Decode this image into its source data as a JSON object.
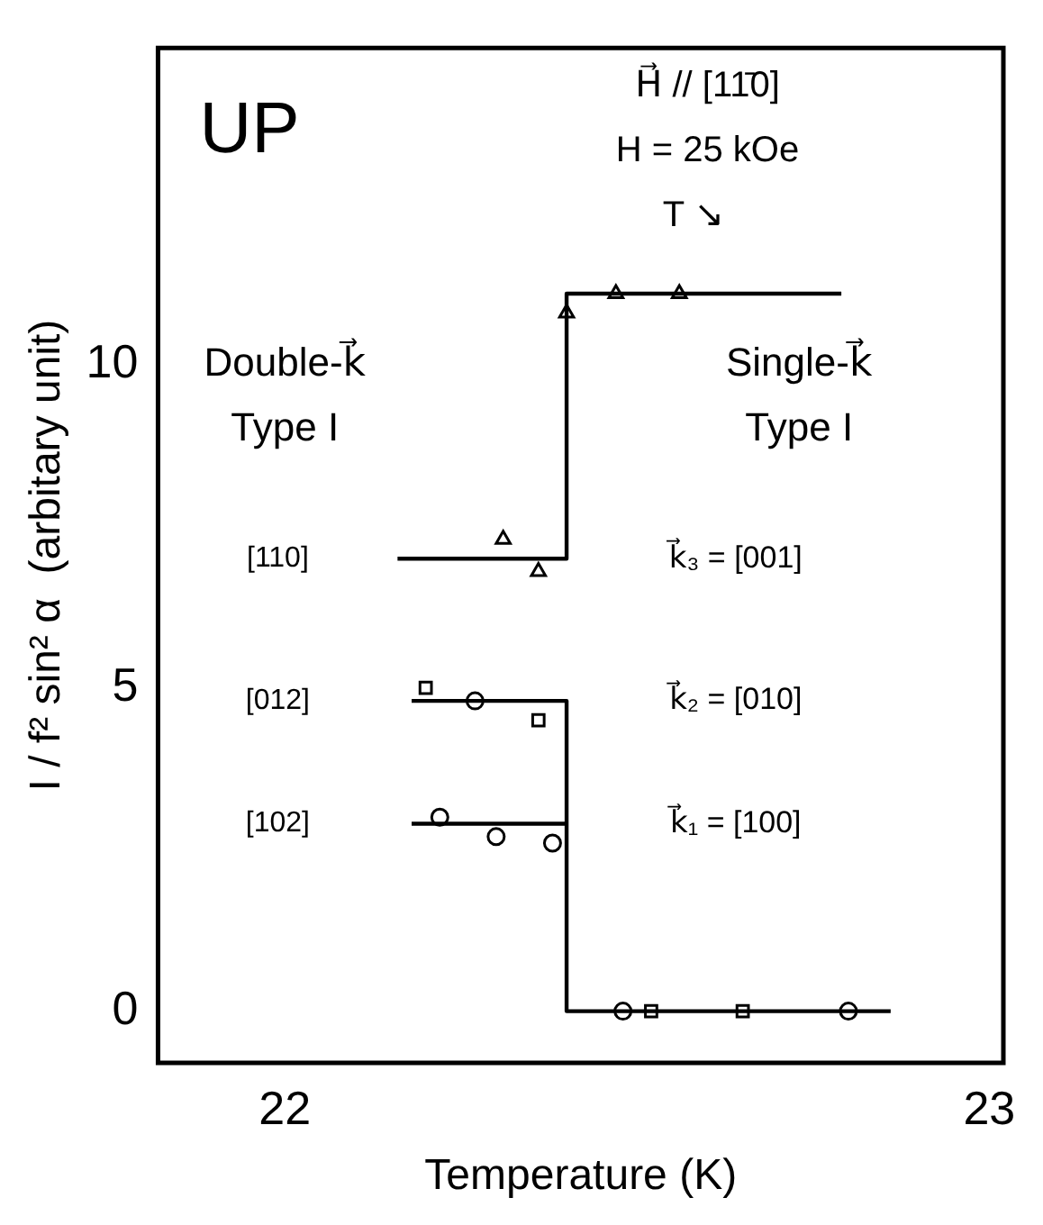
{
  "chart_data": {
    "type": "scatter",
    "xlabel": "Temperature (K)",
    "ylabel": "I / f² sin² α  (arbitary unit)",
    "xlim": [
      21.82,
      23.02
    ],
    "ylim": [
      -0.8,
      14.9
    ],
    "xticks": [
      22,
      23
    ],
    "yticks": [
      0,
      5,
      10
    ],
    "grid": false,
    "legend": false,
    "series": [
      {
        "type": "line",
        "color": "#000000",
        "marker": "none",
        "line_style": "solid",
        "x": [
          22.16,
          22.4,
          22.4,
          22.79
        ],
        "values": [
          7.0,
          7.0,
          11.1,
          11.1
        ]
      },
      {
        "type": "line",
        "color": "#000000",
        "marker": "none",
        "line_style": "solid",
        "x": [
          22.18,
          22.4,
          22.4,
          22.86
        ],
        "values": [
          4.8,
          4.8,
          0,
          0
        ]
      },
      {
        "type": "line",
        "color": "#000000",
        "marker": "none",
        "line_style": "solid",
        "x": [
          22.18,
          22.4
        ],
        "values": [
          2.9,
          2.9
        ]
      },
      {
        "color": "#000000",
        "marker": "triangle",
        "x": [
          22.31,
          22.36,
          22.4,
          22.47,
          22.56
        ],
        "values": [
          7.3,
          6.8,
          10.8,
          11.1,
          11.1
        ]
      },
      {
        "color": "#000000",
        "marker": "square",
        "x": [
          22.2,
          22.36,
          22.52,
          22.65
        ],
        "values": [
          5.0,
          4.5,
          0,
          0
        ]
      },
      {
        "color": "#000000",
        "marker": "circle",
        "x": [
          22.27,
          22.22,
          22.3,
          22.38,
          22.48,
          22.8
        ],
        "values": [
          4.8,
          3.0,
          2.7,
          2.6,
          0,
          0
        ]
      }
    ],
    "annotations": [
      "UP",
      "H⃗ // [11̄0]",
      "H = 25 kOe",
      "T ↘",
      "Double-k⃗",
      "Type I",
      "Single-k⃗",
      "Type I",
      "[110]",
      "k⃗₃ = [001]",
      "[012]",
      "k⃗₂ = [010]",
      "[102]",
      "k⃗₁ = [100]"
    ]
  }
}
